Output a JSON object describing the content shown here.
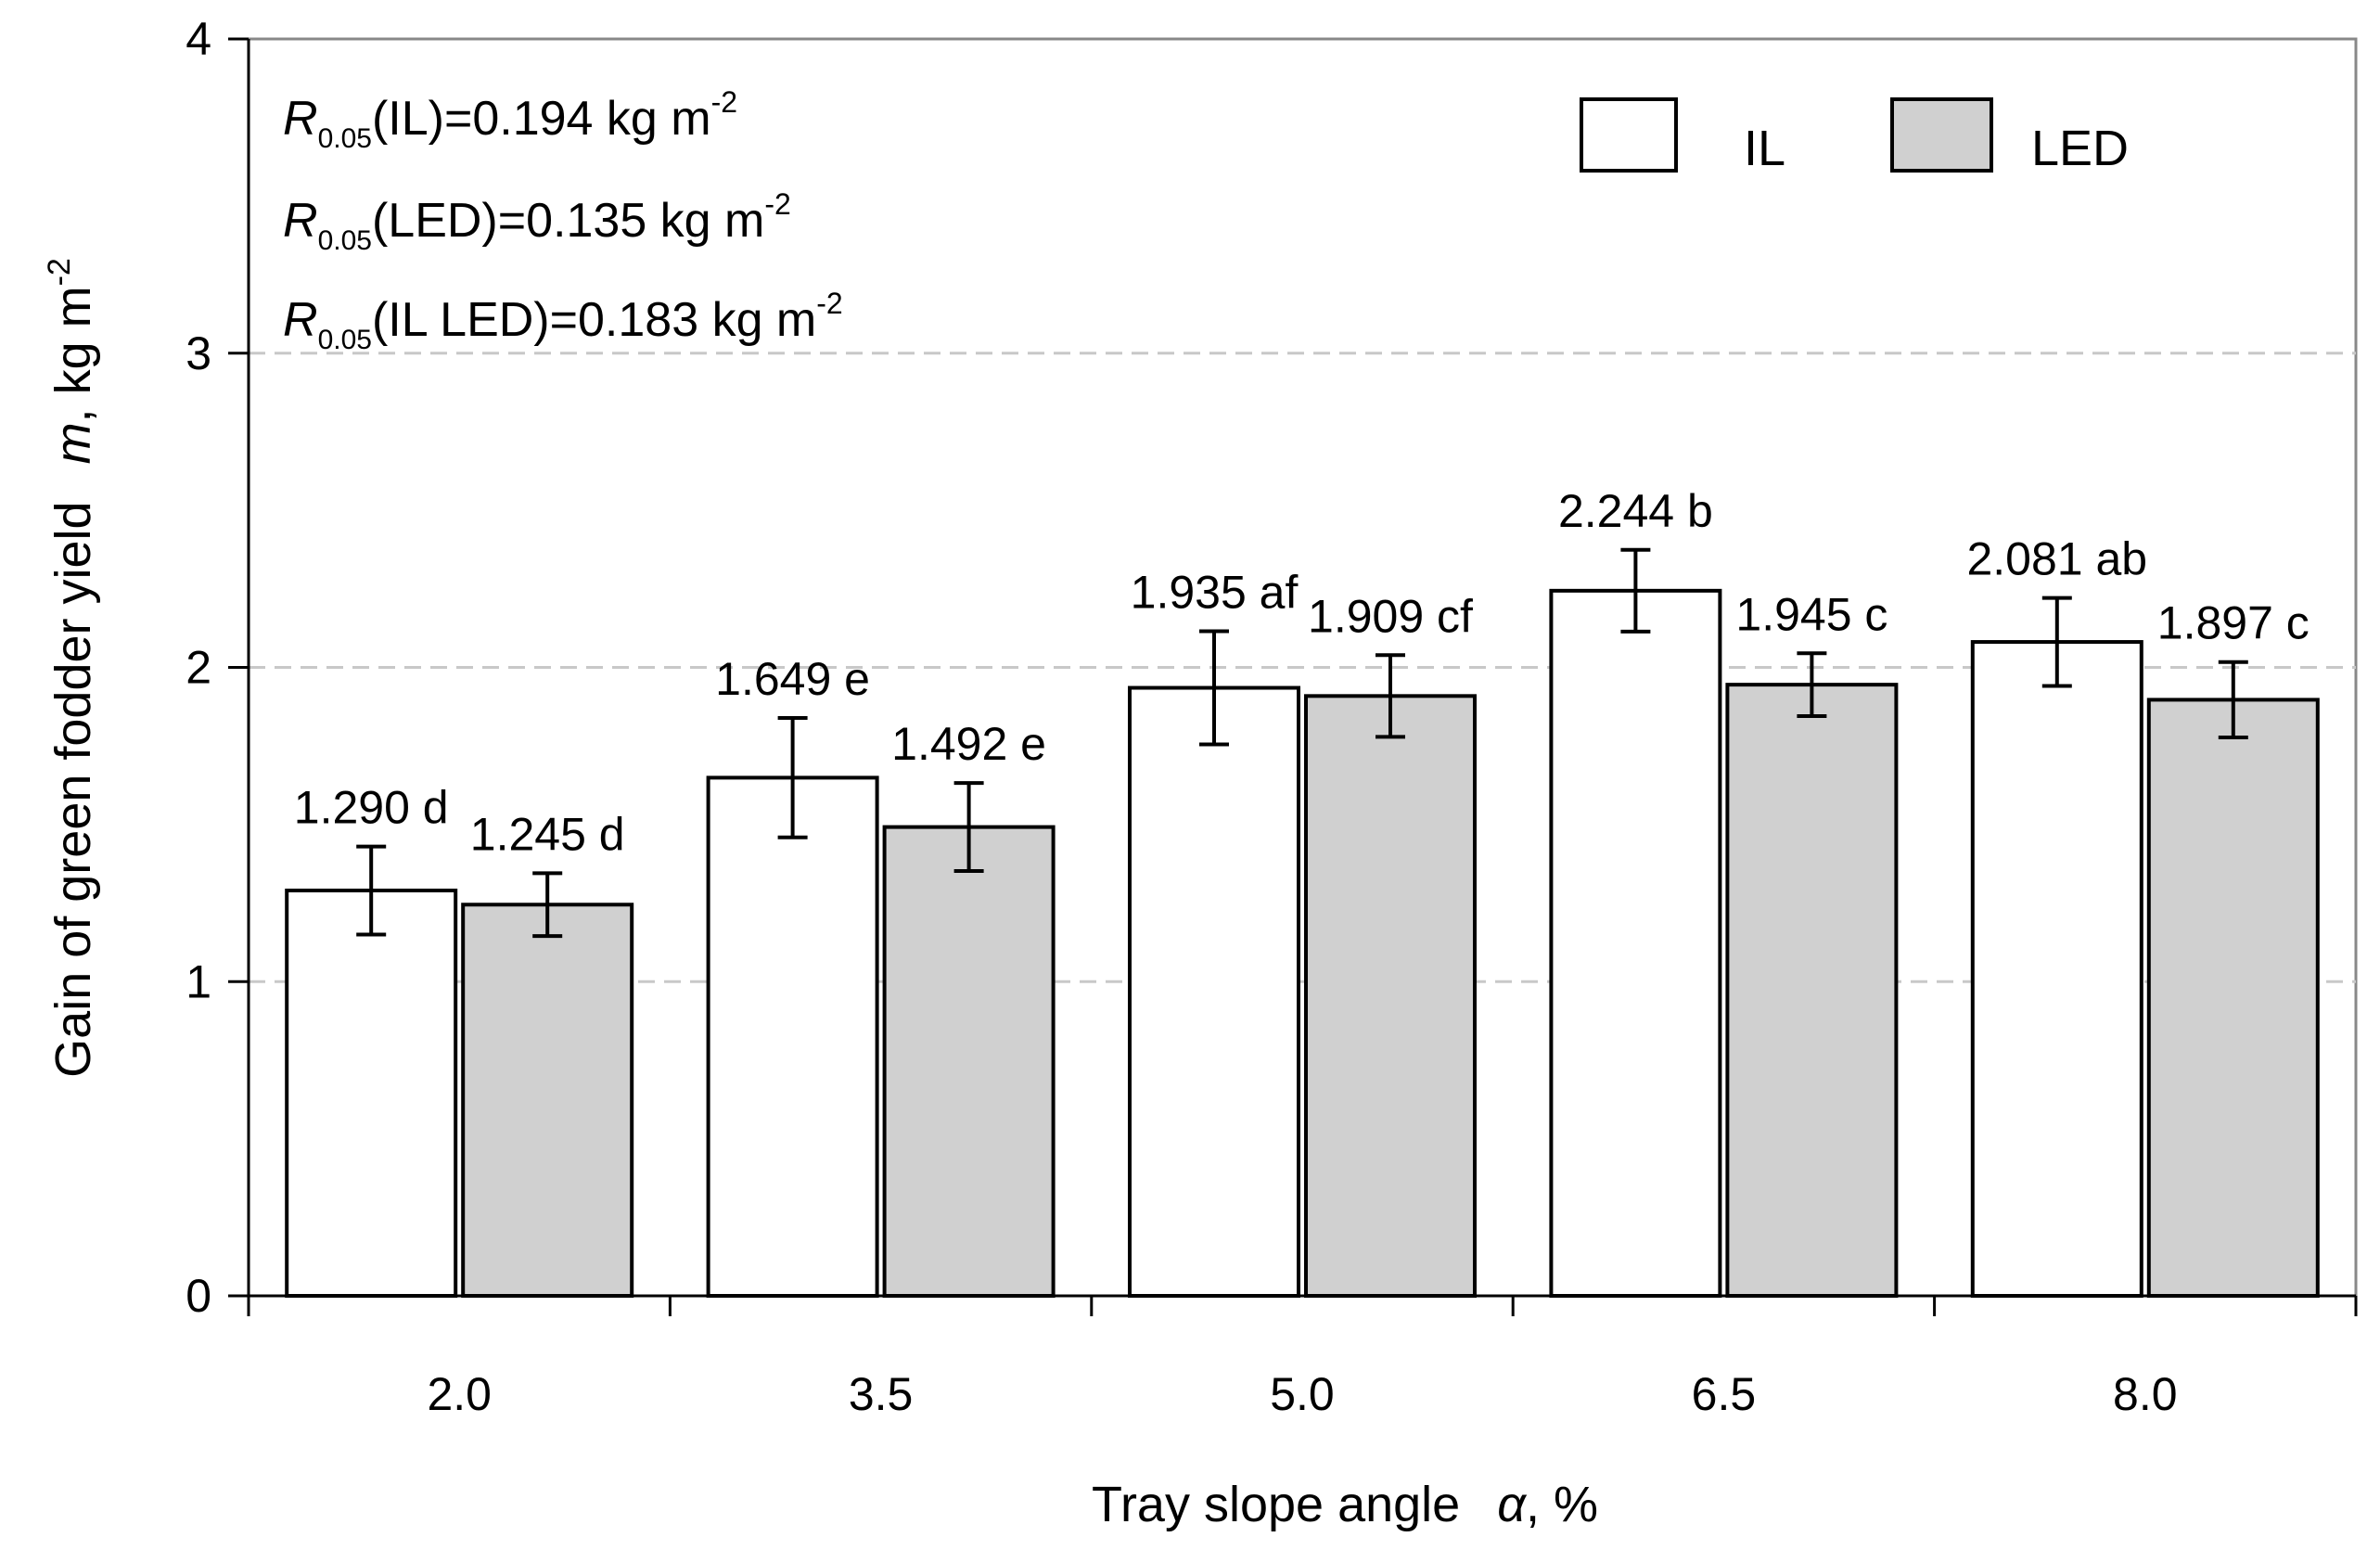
{
  "chart_data": {
    "type": "bar",
    "categories": [
      "2.0",
      "3.5",
      "5.0",
      "6.5",
      "8.0"
    ],
    "series": [
      {
        "name": "IL",
        "color": "#ffffff",
        "values": [
          1.29,
          1.649,
          1.935,
          2.244,
          2.081
        ],
        "errors": [
          0.14,
          0.19,
          0.18,
          0.13,
          0.14
        ],
        "labels": [
          "1.290 d",
          "1.649 e",
          "1.935 af",
          "2.244 b",
          "2.081 ab"
        ]
      },
      {
        "name": "LED",
        "color": "#d0d0d0",
        "values": [
          1.245,
          1.492,
          1.909,
          1.945,
          1.897
        ],
        "errors": [
          0.1,
          0.14,
          0.13,
          0.1,
          0.12
        ],
        "labels": [
          "1.245 d",
          "1.492 e",
          "1.909 cf",
          "1.945 c",
          "1.897 c"
        ]
      }
    ],
    "ylim": [
      0,
      4
    ],
    "yticks": [
      "0",
      "1",
      "2",
      "3",
      "4"
    ],
    "xlabel": {
      "text": "Tray slope angle",
      "symbol": "α",
      "unit": ", %"
    },
    "ylabel": {
      "text": "Gain of green fodder yield",
      "symbol": "m",
      "unit": ", kg m",
      "sup": "-2"
    },
    "gridlines": [
      1,
      2,
      3
    ],
    "legend_position": "top-right",
    "annotations": [
      {
        "symbol": "R",
        "sub": "0.05",
        "text": "(IL)=0.194 kg m",
        "sup": "-2"
      },
      {
        "symbol": "R",
        "sub": "0.05",
        "text": "(LED)=0.135 kg m",
        "sup": "-2"
      },
      {
        "symbol": "R",
        "sub": "0.05",
        "text": "(IL LED)=0.183 kg m",
        "sup": "-2"
      }
    ]
  }
}
